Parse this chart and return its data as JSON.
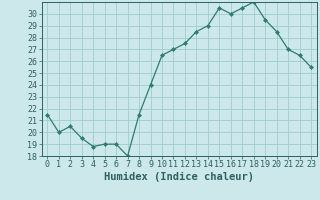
{
  "x": [
    0,
    1,
    2,
    3,
    4,
    5,
    6,
    7,
    8,
    9,
    10,
    11,
    12,
    13,
    14,
    15,
    16,
    17,
    18,
    19,
    20,
    21,
    22,
    23
  ],
  "y": [
    21.5,
    20.0,
    20.5,
    19.5,
    18.8,
    19.0,
    19.0,
    18.0,
    21.5,
    24.0,
    26.5,
    27.0,
    27.5,
    28.5,
    29.0,
    30.5,
    30.0,
    30.5,
    31.0,
    29.5,
    28.5,
    27.0,
    26.5,
    25.5
  ],
  "line_color": "#2e7d6e",
  "marker": "D",
  "marker_size": 2.0,
  "bg_color": "#cce8ea",
  "grid_color": "#9ecdd0",
  "tick_color": "#2e6060",
  "xlabel": "Humidex (Indice chaleur)",
  "ylim": [
    18,
    31
  ],
  "yticks": [
    18,
    19,
    20,
    21,
    22,
    23,
    24,
    25,
    26,
    27,
    28,
    29,
    30
  ],
  "xticks": [
    0,
    1,
    2,
    3,
    4,
    5,
    6,
    7,
    8,
    9,
    10,
    11,
    12,
    13,
    14,
    15,
    16,
    17,
    18,
    19,
    20,
    21,
    22,
    23
  ],
  "xlabel_fontsize": 7.5,
  "tick_fontsize": 6.0
}
